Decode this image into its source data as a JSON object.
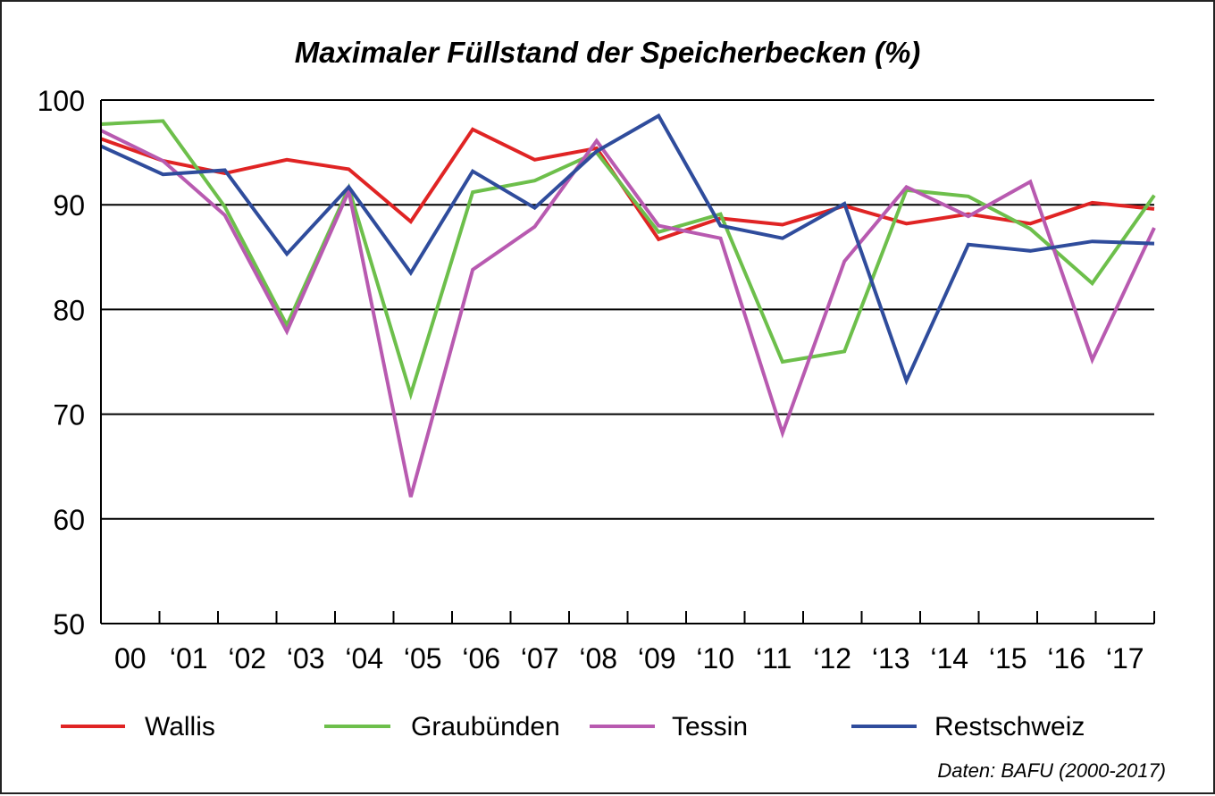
{
  "chart_data": {
    "type": "line",
    "title": "Maximaler Füllstand der Speicherbecken (%)",
    "xlabel": "",
    "ylabel": "",
    "categories": [
      "00",
      "‘01",
      "‘02",
      "‘03",
      "‘04",
      "‘05",
      "‘06",
      "‘07",
      "‘08",
      "‘09",
      "‘10",
      "‘11",
      "‘12",
      "‘13",
      "‘14",
      "‘15",
      "‘16",
      "‘17"
    ],
    "ylim": [
      50,
      100
    ],
    "yticks": [
      "100",
      "90",
      "80",
      "70",
      "60",
      "50"
    ],
    "grid": true,
    "legend_position": "bottom",
    "series": [
      {
        "name": "Wallis",
        "color": "#e02424",
        "values": [
          96.3,
          94.2,
          93.0,
          94.3,
          93.4,
          88.4,
          97.2,
          94.3,
          95.4,
          86.7,
          88.7,
          88.1,
          89.9,
          88.2,
          89.1,
          88.2,
          90.2,
          89.6
        ]
      },
      {
        "name": "Graubünden",
        "color": "#6dbf4b",
        "values": [
          97.7,
          98.0,
          89.8,
          78.5,
          91.6,
          71.9,
          91.2,
          92.3,
          95.0,
          87.4,
          89.1,
          75.0,
          76.0,
          91.4,
          90.8,
          87.7,
          82.5,
          90.9
        ]
      },
      {
        "name": "Tessin",
        "color": "#b85ab0",
        "values": [
          97.1,
          94.2,
          89.0,
          77.9,
          91.3,
          62.1,
          83.8,
          87.9,
          96.1,
          88.0,
          86.8,
          68.2,
          84.6,
          91.7,
          88.9,
          92.2,
          75.2,
          87.8
        ]
      },
      {
        "name": "Restschweiz",
        "color": "#2f4c9c",
        "values": [
          95.6,
          92.9,
          93.3,
          85.3,
          91.7,
          83.5,
          93.2,
          89.7,
          95.1,
          98.5,
          88.0,
          86.8,
          90.1,
          73.2,
          86.2,
          85.6,
          86.5,
          86.3
        ]
      }
    ],
    "source": "Daten: BAFU (2000-2017)"
  }
}
